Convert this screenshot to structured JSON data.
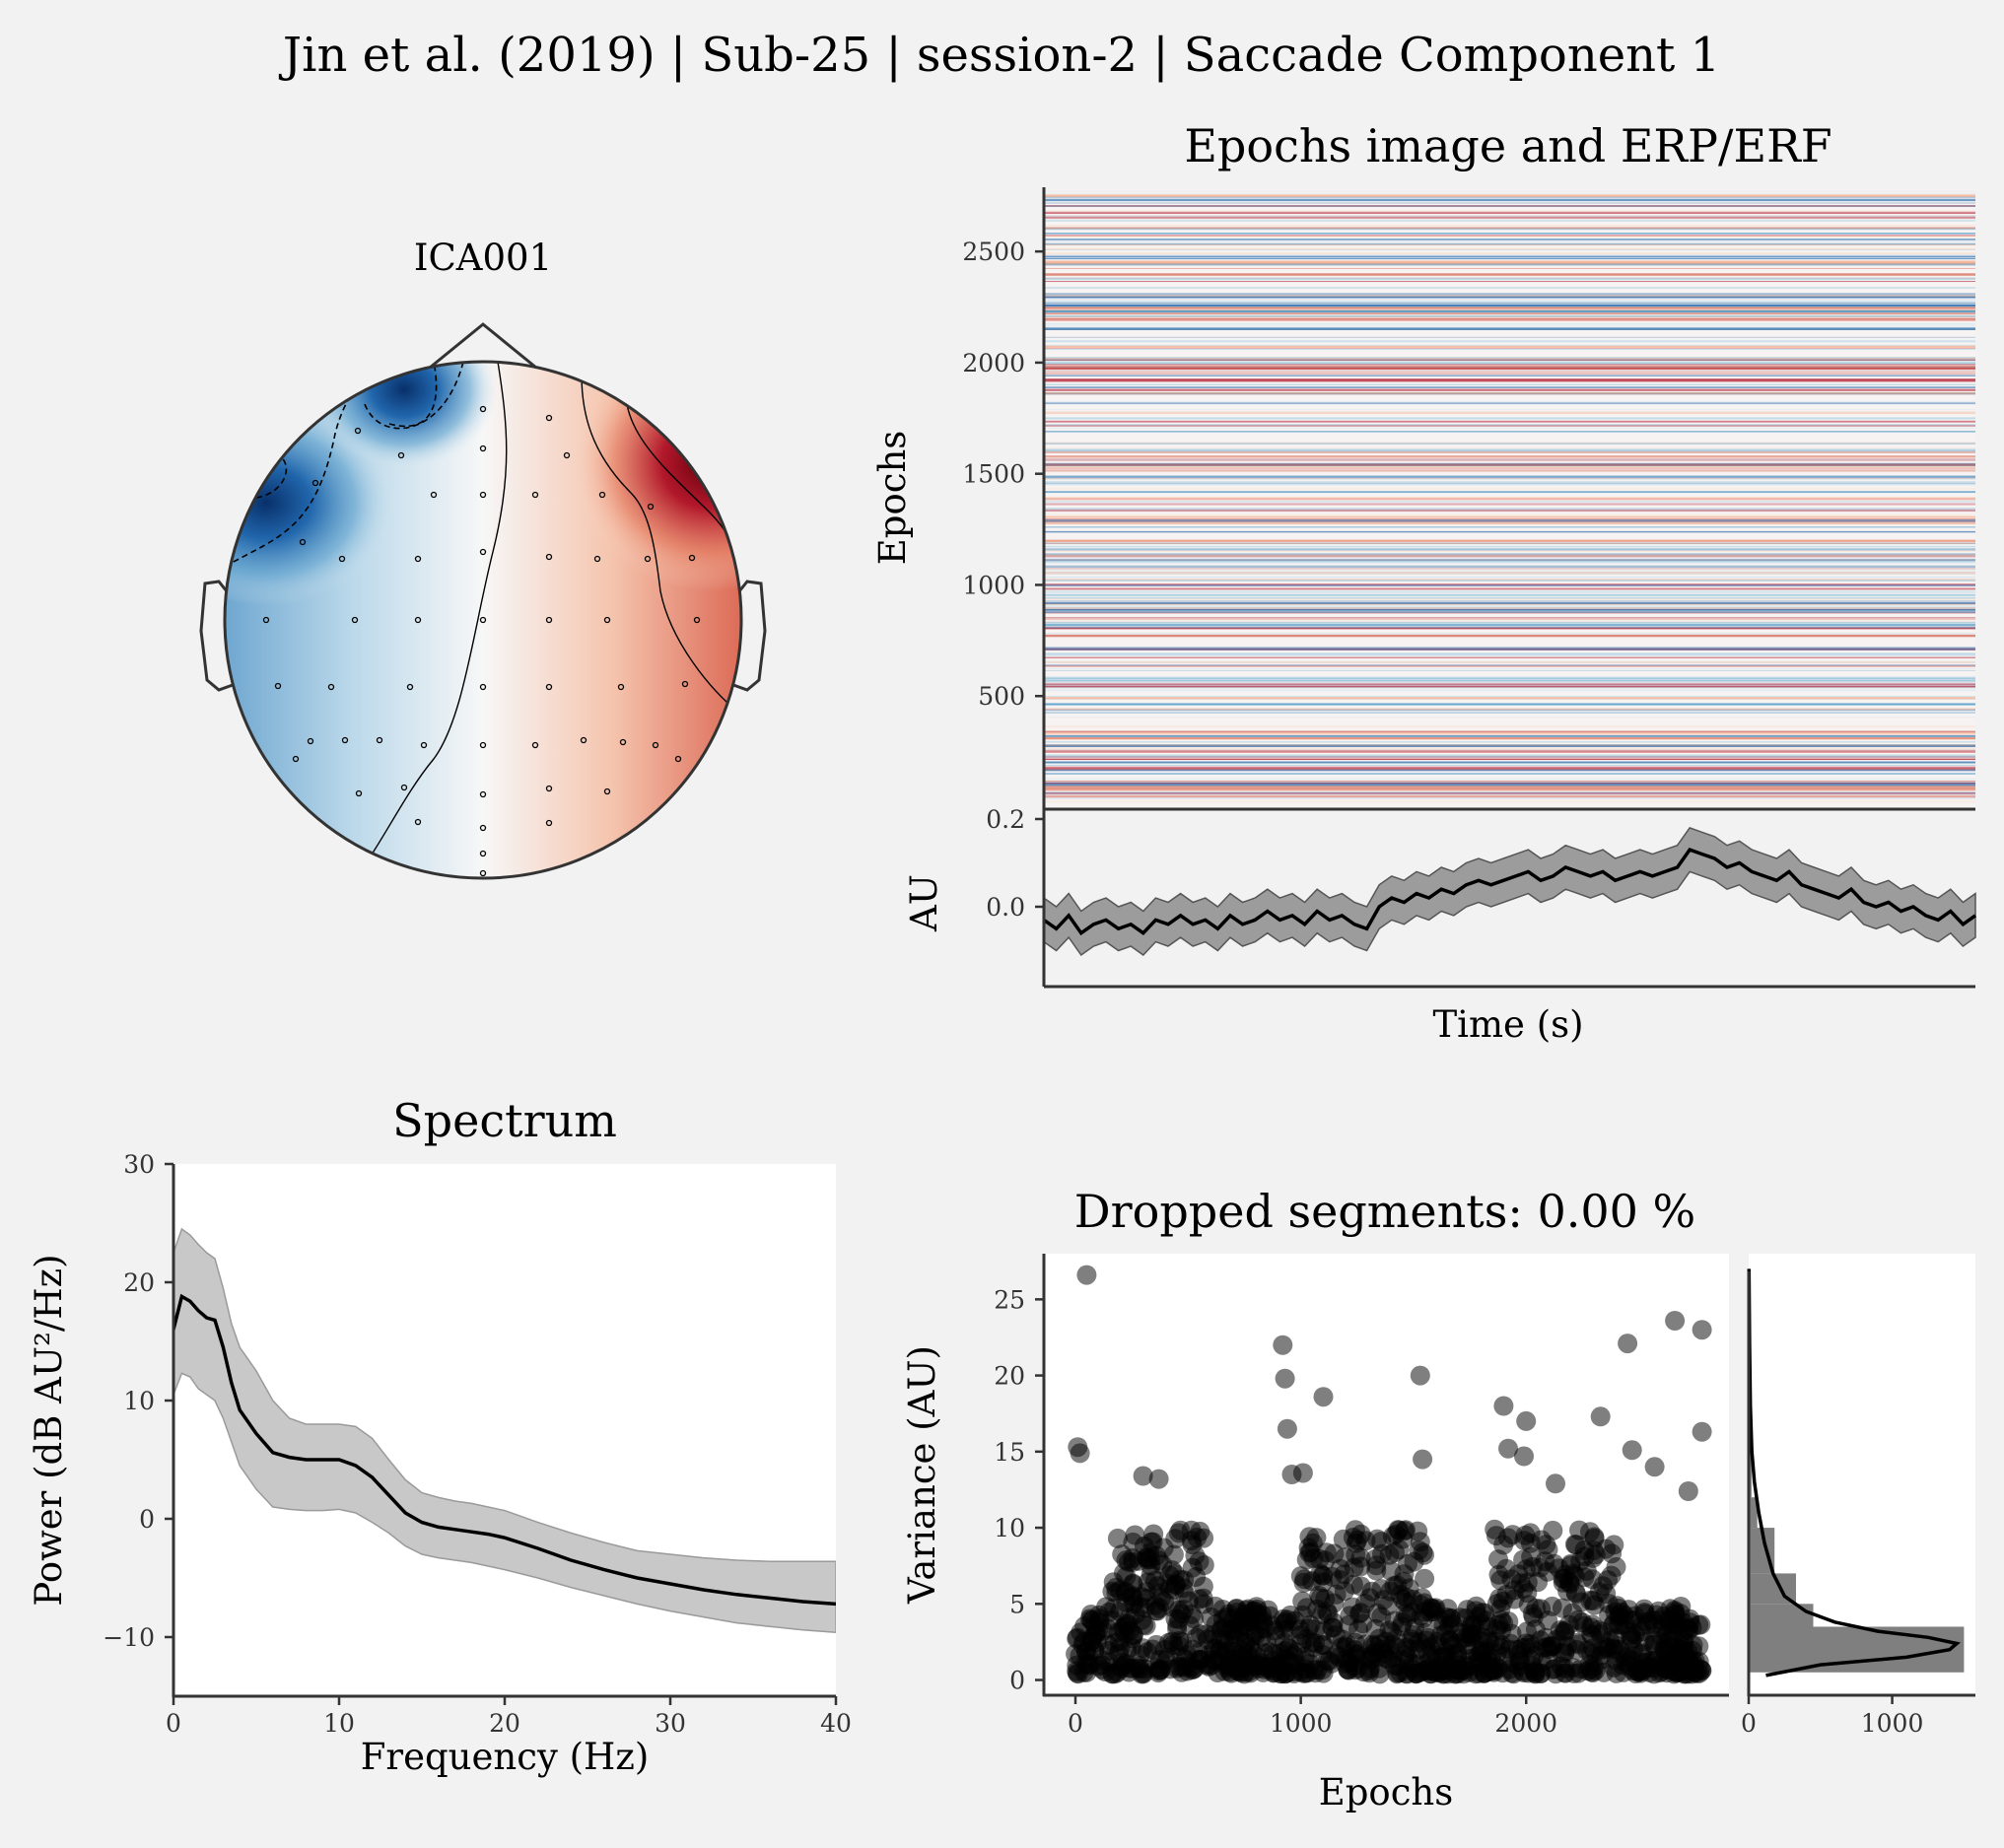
{
  "figure": {
    "suptitle": "Jin et al. (2019) | Sub-25 | session-2 | Saccade Component 1"
  },
  "colors": {
    "background": "#f2f2f2",
    "neg": "#08306b",
    "pos": "#67000d",
    "band": "#7f7f7f",
    "line": "#000000"
  },
  "chart_data": [
    {
      "type": "heatmap",
      "name": "topomap",
      "title": "ICA001",
      "channels": 64,
      "description_colors": "RdBu_r"
    },
    {
      "type": "heatmap",
      "name": "epochs-image",
      "title": "Epochs image and ERP/ERF",
      "ylabel": "Epochs",
      "yticks": [
        "500",
        "1000",
        "1500",
        "2000",
        "2500"
      ],
      "ylim": [
        0,
        2780
      ]
    },
    {
      "type": "line",
      "name": "erp",
      "xlabel": "Time (s)",
      "ylabel": "AU",
      "yticks": [
        "0.0",
        "0.2"
      ],
      "ylim": [
        -0.17,
        0.21
      ],
      "mean": [
        -0.03,
        -0.05,
        -0.02,
        -0.06,
        -0.04,
        -0.03,
        -0.05,
        -0.04,
        -0.06,
        -0.03,
        -0.04,
        -0.02,
        -0.04,
        -0.03,
        -0.05,
        -0.02,
        -0.04,
        -0.03,
        -0.01,
        -0.03,
        -0.02,
        -0.04,
        -0.01,
        -0.03,
        -0.02,
        -0.04,
        -0.05,
        0.0,
        0.02,
        0.01,
        0.03,
        0.02,
        0.04,
        0.03,
        0.05,
        0.06,
        0.05,
        0.06,
        0.07,
        0.08,
        0.06,
        0.07,
        0.09,
        0.08,
        0.07,
        0.08,
        0.06,
        0.07,
        0.08,
        0.07,
        0.08,
        0.09,
        0.13,
        0.12,
        0.11,
        0.09,
        0.1,
        0.08,
        0.07,
        0.06,
        0.08,
        0.05,
        0.04,
        0.03,
        0.02,
        0.04,
        0.01,
        0.0,
        0.01,
        -0.01,
        0.0,
        -0.02,
        -0.03,
        -0.01,
        -0.04,
        -0.02
      ],
      "ci": 0.05
    },
    {
      "type": "line",
      "name": "spectrum",
      "title": "Spectrum",
      "xlabel": "Frequency (Hz)",
      "ylabel": "Power (dB AU²/Hz)",
      "xticks": [
        "0",
        "10",
        "20",
        "30",
        "40"
      ],
      "yticks": [
        "−10",
        "0",
        "10",
        "20",
        "30"
      ],
      "xlim": [
        0,
        40
      ],
      "ylim": [
        -15,
        30
      ],
      "x": [
        0,
        0.5,
        1,
        1.5,
        2,
        2.5,
        3,
        3.5,
        4,
        5,
        6,
        7,
        8,
        9,
        10,
        11,
        12,
        13,
        14,
        15,
        16,
        17,
        18,
        19,
        20,
        22,
        24,
        26,
        28,
        30,
        32,
        34,
        36,
        38,
        40
      ],
      "mean": [
        16,
        18.8,
        18.4,
        17.6,
        17.0,
        16.8,
        14.5,
        11.5,
        9.2,
        7.2,
        5.6,
        5.2,
        5.0,
        5.0,
        5.0,
        4.5,
        3.5,
        2.0,
        0.5,
        -0.3,
        -0.7,
        -0.9,
        -1.1,
        -1.3,
        -1.6,
        -2.5,
        -3.5,
        -4.3,
        -5.0,
        -5.5,
        -6.0,
        -6.4,
        -6.7,
        -7.0,
        -7.2
      ],
      "upper": [
        22.5,
        24.5,
        24.0,
        23.2,
        22.5,
        22.0,
        19.5,
        16.5,
        14.5,
        12.5,
        10.0,
        8.5,
        8.0,
        8.0,
        8.0,
        7.8,
        6.8,
        5.0,
        3.3,
        2.2,
        1.8,
        1.5,
        1.3,
        1.0,
        0.7,
        -0.3,
        -1.2,
        -2.0,
        -2.7,
        -3.0,
        -3.3,
        -3.5,
        -3.6,
        -3.6,
        -3.6
      ],
      "lower": [
        10.5,
        12.3,
        12.0,
        11.0,
        10.5,
        10.0,
        8.5,
        6.5,
        4.5,
        2.5,
        1.0,
        0.8,
        0.7,
        0.7,
        0.8,
        0.5,
        -0.3,
        -1.2,
        -2.3,
        -3.0,
        -3.3,
        -3.5,
        -3.7,
        -4.0,
        -4.3,
        -5.0,
        -5.8,
        -6.5,
        -7.2,
        -7.8,
        -8.3,
        -8.8,
        -9.1,
        -9.4,
        -9.6
      ]
    },
    {
      "type": "scatter",
      "name": "variance",
      "title": "Dropped segments: 0.00 %",
      "xlabel": "Epochs",
      "ylabel": "Variance (AU)",
      "xticks": [
        "0",
        "1000",
        "2000"
      ],
      "yticks": [
        "0",
        "5",
        "10",
        "15",
        "20",
        "25"
      ],
      "xlim": [
        -140,
        2900
      ],
      "ylim": [
        -1,
        28
      ],
      "n_points": 2780,
      "outliers": [
        [
          50,
          26.6
        ],
        [
          10,
          15.3
        ],
        [
          20,
          14.9
        ],
        [
          920,
          22.0
        ],
        [
          930,
          19.8
        ],
        [
          940,
          16.5
        ],
        [
          1100,
          18.6
        ],
        [
          1530,
          20.0
        ],
        [
          1540,
          14.5
        ],
        [
          1900,
          18.0
        ],
        [
          2000,
          17.0
        ],
        [
          2450,
          22.1
        ],
        [
          2660,
          23.6
        ],
        [
          2780,
          23.0
        ],
        [
          2780,
          16.3
        ],
        [
          2330,
          17.3
        ],
        [
          1990,
          14.7
        ],
        [
          1920,
          15.2
        ],
        [
          960,
          13.5
        ],
        [
          1010,
          13.6
        ],
        [
          300,
          13.4
        ],
        [
          370,
          13.2
        ],
        [
          2570,
          14.0
        ],
        [
          2720,
          12.4
        ],
        [
          2130,
          12.9
        ],
        [
          2470,
          15.1
        ]
      ]
    },
    {
      "type": "bar",
      "name": "variance-histogram",
      "xticks": [
        "0",
        "1000"
      ],
      "xlim": [
        0,
        1580
      ],
      "bins": [
        [
          0.5,
          3.5,
          1500
        ],
        [
          3.5,
          5.0,
          450
        ],
        [
          5.0,
          7.0,
          330
        ],
        [
          7.0,
          10.0,
          180
        ],
        [
          10.0,
          12.0,
          60
        ],
        [
          12.0,
          16.0,
          20
        ]
      ]
    }
  ]
}
